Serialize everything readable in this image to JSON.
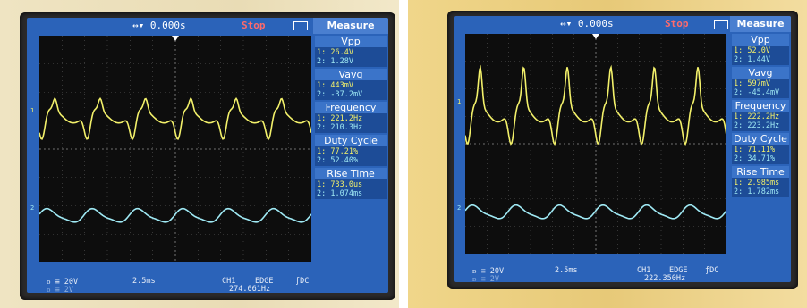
{
  "left": {
    "header": {
      "timebase_offset": "↔▾ 0.000s",
      "status": "Stop",
      "menu_title": "Measure"
    },
    "measurements": [
      {
        "title": "Vpp",
        "ch1": "1: 26.4V",
        "ch2": "2: 1.28V"
      },
      {
        "title": "Vavg",
        "ch1": "1: 443mV",
        "ch2": "2: -37.2mV"
      },
      {
        "title": "Frequency",
        "ch1": "1: 221.2Hz",
        "ch2": "2: 210.3Hz"
      },
      {
        "title": "Duty Cycle",
        "ch1": "1: 77.21%",
        "ch2": "2: 52.40%"
      },
      {
        "title": "Rise Time",
        "ch1": "1: 733.0us",
        "ch2": "2: 1.074ms"
      }
    ],
    "footer": {
      "ch1_scale": "ᴅ ≡ 20V",
      "ch2_scale": "ᴅ ≡ 2V",
      "timebase": "2.5ms",
      "trigger_source": "CH1",
      "trigger_type": "EDGE",
      "coupling": "ƒDC",
      "trigger_freq": "274.061Hz"
    },
    "markers": {
      "ch1": "1",
      "ch2": "2"
    }
  },
  "right": {
    "header": {
      "timebase_offset": "↔▾ 0.000s",
      "status": "Stop",
      "menu_title": "Measure"
    },
    "measurements": [
      {
        "title": "Vpp",
        "ch1": "1: 52.0V",
        "ch2": "2: 1.44V"
      },
      {
        "title": "Vavg",
        "ch1": "1: 597mV",
        "ch2": "2: -45.4mV"
      },
      {
        "title": "Frequency",
        "ch1": "1: 222.2Hz",
        "ch2": "2: 223.2Hz"
      },
      {
        "title": "Duty Cycle",
        "ch1": "1: 71.11%",
        "ch2": "2: 34.71%"
      },
      {
        "title": "Rise Time",
        "ch1": "1: 2.985ms",
        "ch2": "2: 1.782ms"
      }
    ],
    "footer": {
      "ch1_scale": "ᴅ ≡ 20V",
      "ch2_scale": "ᴅ ≡ 2V",
      "timebase": "2.5ms",
      "trigger_source": "CH1",
      "trigger_type": "EDGE",
      "coupling": "ƒDC",
      "trigger_freq": "222.350Hz"
    },
    "markers": {
      "ch1": "1",
      "ch2": "2"
    }
  },
  "colors": {
    "ch1": "#f2f06a",
    "ch2": "#9fe9f4",
    "screen": "#2b63b9",
    "grid": "#0d0d0d"
  }
}
